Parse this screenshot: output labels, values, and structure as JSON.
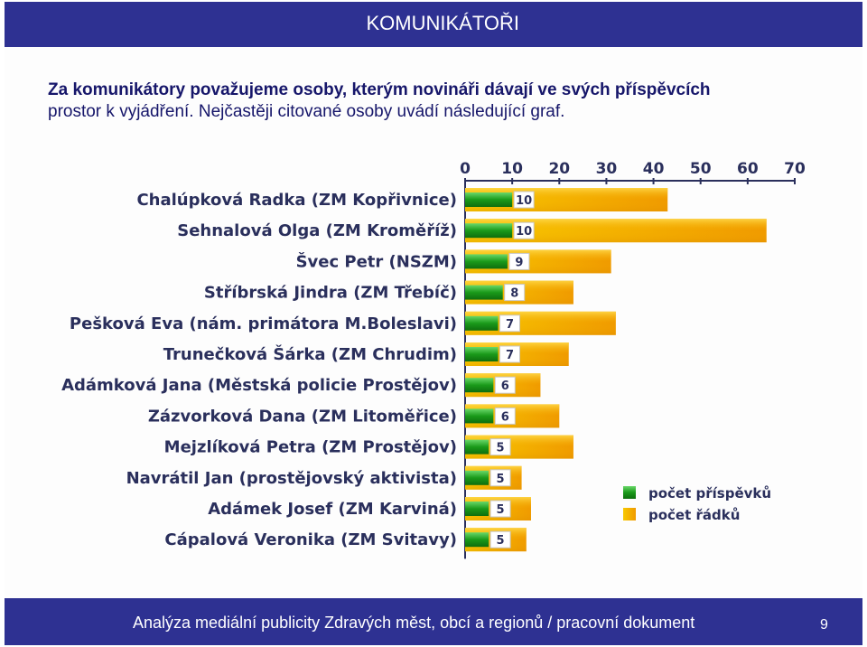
{
  "header": {
    "title": "KOMUNIKÁTOŘI"
  },
  "intro": {
    "line1": "Za komunikátory považujeme osoby, kterým novináři dávají ve svých příspěvcích",
    "line2": "prostor k vyjádření. Nejčastěji citované osoby uvádí následující graf."
  },
  "chart_data": {
    "type": "bar",
    "orientation": "horizontal",
    "title": "",
    "xlabel": "",
    "ylabel": "",
    "xlim": [
      0,
      70
    ],
    "xticks": [
      "0",
      "10",
      "20",
      "30",
      "40",
      "50",
      "60",
      "70"
    ],
    "categories": [
      "Chalúpková Radka (ZM Kopřivnice)",
      "Sehnalová Olga (ZM Kroměříž)",
      "Švec Petr (NSZM)",
      "Stříbrská Jindra (ZM Třebíč)",
      "Pešková Eva (nám. primátora M.Boleslavi)",
      "Trunečková Šárka (ZM Chrudim)",
      "Adámková Jana (Městská policie Prostějov)",
      "Zázvorková Dana (ZM Litoměřice)",
      "Mejzlíková Petra (ZM Prostějov)",
      "Navrátil Jan (prostějovský aktivista)",
      "Adámek Josef (ZM Karviná)",
      "Cápalová Veronika (ZM Svitavy)"
    ],
    "series": [
      {
        "name": "počet příspěvků",
        "color": "#1a9a1a",
        "values": [
          10,
          10,
          9,
          8,
          7,
          7,
          6,
          6,
          5,
          5,
          5,
          5
        ]
      },
      {
        "name": "počet řádků",
        "color": "#f0a800",
        "values": [
          43,
          64,
          31,
          23,
          32,
          22,
          16,
          20,
          23,
          12,
          14,
          13
        ]
      }
    ],
    "value_labels": [
      "10",
      "10",
      "9",
      "8",
      "7",
      "7",
      "6",
      "6",
      "5",
      "5",
      "5",
      "5"
    ],
    "legend": "right"
  },
  "footer": {
    "text": "Analýza mediální publicity Zdravých měst, obcí a regionů / pracovní dokument",
    "page": "9"
  }
}
